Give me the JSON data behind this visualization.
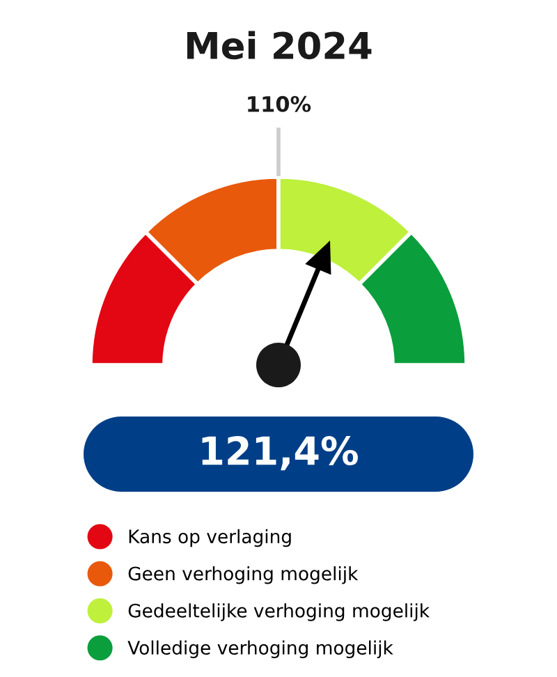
{
  "chart_data": {
    "type": "donut",
    "title": "Mei 2024",
    "categories": [
      "Kans op verlaging",
      "Geen verhoging mogelijk",
      "Gedeeltelijke verhoging mogelijk",
      "Volledige verhoging mogelijk"
    ],
    "values": [
      25,
      25,
      25,
      25
    ],
    "colors": [
      "#e30613",
      "#e8590c",
      "#bef03c",
      "#0b9e3c"
    ],
    "needle": "Gedeeltelijke verhoging mogelijk",
    "annotations": [
      "110%",
      "121,4%"
    ],
    "legend": "bottom"
  }
}
